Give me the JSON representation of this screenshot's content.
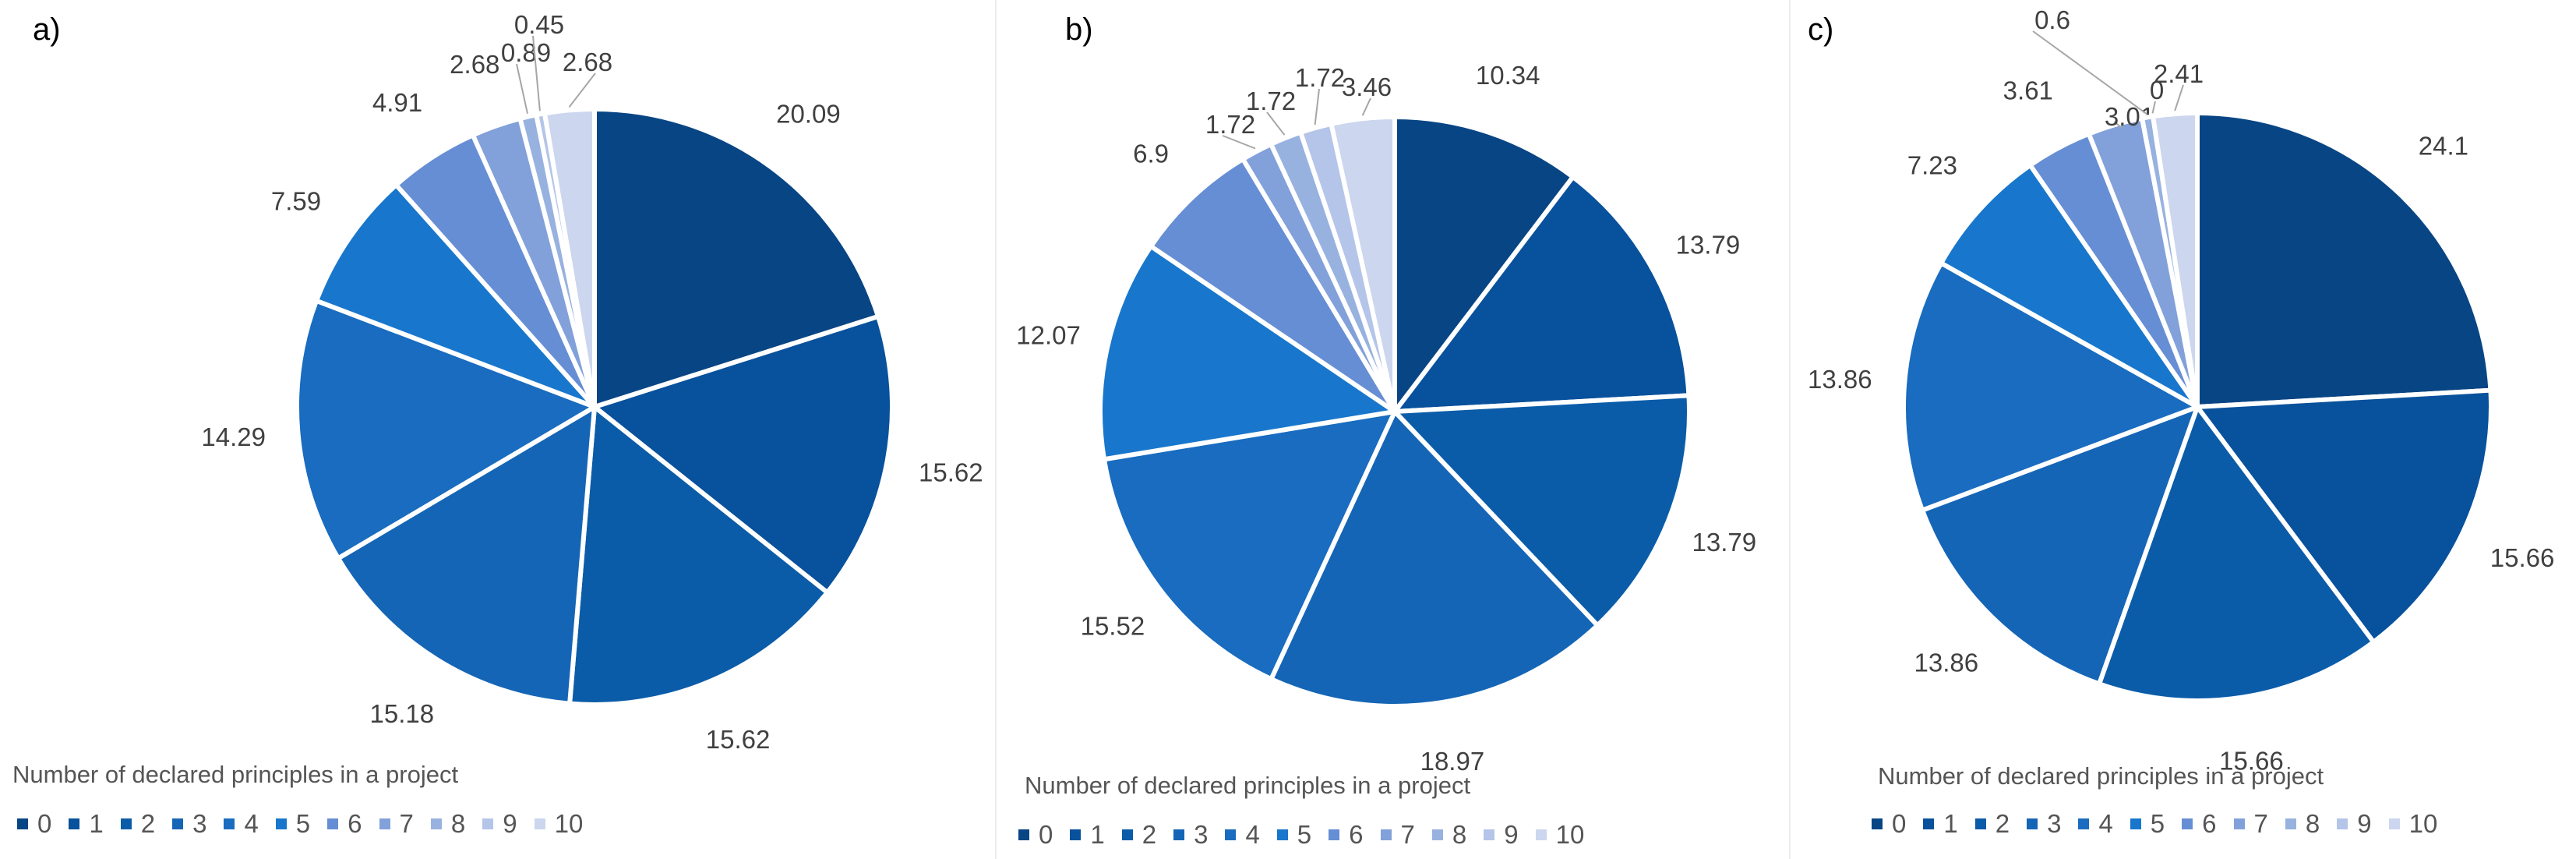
{
  "legend_title": "Number of declared principles in a project",
  "legend_items": [
    "0",
    "1",
    "2",
    "3",
    "4",
    "5",
    "6",
    "7",
    "8",
    "9",
    "10"
  ],
  "colors": [
    "#084584",
    "#08519c",
    "#0b5ca8",
    "#1565b6",
    "#196cbf",
    "#1877cc",
    "#668ed4",
    "#82a1da",
    "#98b2e0",
    "#b4c5e9",
    "#ccd6ee"
  ],
  "chart_data": [
    {
      "type": "pie",
      "label": "a)",
      "categories": [
        "0",
        "1",
        "2",
        "3",
        "4",
        "5",
        "6",
        "7",
        "8",
        "9",
        "10"
      ],
      "values": [
        20.09,
        15.62,
        15.62,
        15.18,
        14.29,
        7.59,
        4.91,
        2.68,
        0.89,
        0.45,
        2.68
      ],
      "value_labels": [
        "20.09",
        "15.62",
        "15.62",
        "15.18",
        "14.29",
        "7.59",
        "4.91",
        "2.68",
        "0.89",
        "0.45",
        "2.68"
      ],
      "legend_title": "Number of declared principles in a project"
    },
    {
      "type": "pie",
      "label": "b)",
      "categories": [
        "0",
        "1",
        "2",
        "3",
        "4",
        "5",
        "6",
        "7",
        "8",
        "9",
        "10"
      ],
      "values": [
        10.34,
        13.79,
        13.79,
        18.97,
        15.52,
        12.07,
        6.9,
        1.72,
        1.72,
        1.72,
        3.46
      ],
      "value_labels": [
        "10.34",
        "13.79",
        "13.79",
        "18.97",
        "15.52",
        "12.07",
        "6.9",
        "1.72",
        "1.72",
        "1.72",
        "3.46"
      ],
      "legend_title": "Number of declared principles in a project"
    },
    {
      "type": "pie",
      "label": "c)",
      "categories": [
        "0",
        "1",
        "2",
        "3",
        "4",
        "5",
        "6",
        "7",
        "8",
        "9",
        "10"
      ],
      "values": [
        24.1,
        15.66,
        15.66,
        13.86,
        13.86,
        7.23,
        3.61,
        3.01,
        0.6,
        0,
        2.41
      ],
      "value_labels": [
        "24.1",
        "15.66",
        "15.66",
        "13.86",
        "13.86",
        "7.23",
        "3.61",
        "3.01",
        "0.6",
        "0",
        "2.41"
      ],
      "legend_title": "Number of declared principles in a project"
    }
  ]
}
